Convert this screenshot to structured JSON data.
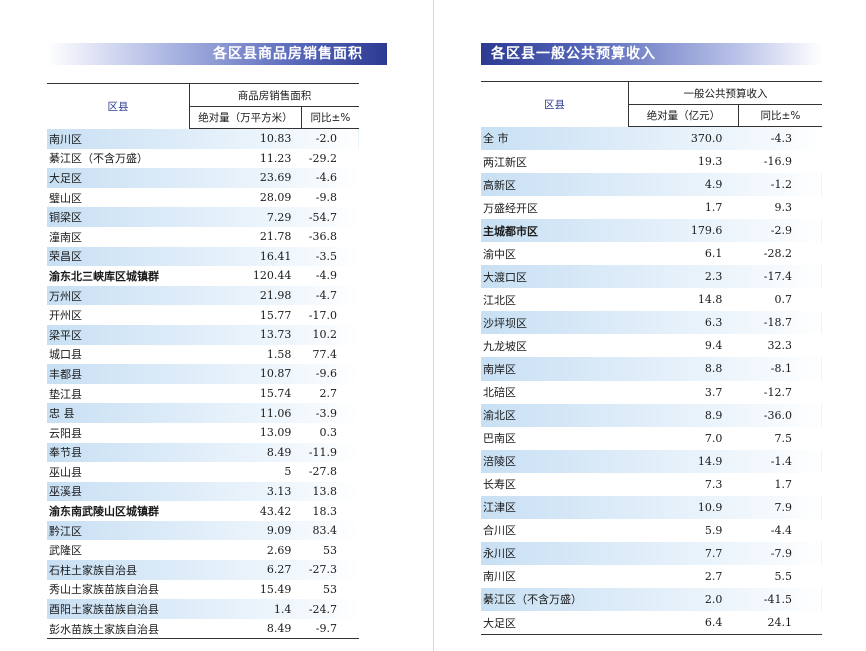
{
  "left": {
    "title": "各区县商品房销售面积",
    "header": {
      "region": "区县",
      "group": "商品房销售面积",
      "col1": "绝对量（万平方米）",
      "col2": "同比±%"
    },
    "rows": [
      {
        "name": "南川区",
        "v1": "10.83",
        "v2": "-2.0",
        "blue": true,
        "bold": false
      },
      {
        "name": "綦江区（不含万盛）",
        "v1": "11.23",
        "v2": "-29.2",
        "blue": false,
        "bold": false
      },
      {
        "name": "大足区",
        "v1": "23.69",
        "v2": "-4.6",
        "blue": true,
        "bold": false
      },
      {
        "name": "璧山区",
        "v1": "28.09",
        "v2": "-9.8",
        "blue": false,
        "bold": false
      },
      {
        "name": "铜梁区",
        "v1": "7.29",
        "v2": "-54.7",
        "blue": true,
        "bold": false
      },
      {
        "name": "潼南区",
        "v1": "21.78",
        "v2": "-36.8",
        "blue": false,
        "bold": false
      },
      {
        "name": "荣昌区",
        "v1": "16.41",
        "v2": "-3.5",
        "blue": true,
        "bold": false
      },
      {
        "name": "渝东北三峡库区城镇群",
        "v1": "120.44",
        "v2": "-4.9",
        "blue": false,
        "bold": true
      },
      {
        "name": "万州区",
        "v1": "21.98",
        "v2": "-4.7",
        "blue": true,
        "bold": false
      },
      {
        "name": "开州区",
        "v1": "15.77",
        "v2": "-17.0",
        "blue": false,
        "bold": false
      },
      {
        "name": "梁平区",
        "v1": "13.73",
        "v2": "10.2",
        "blue": true,
        "bold": false
      },
      {
        "name": "城口县",
        "v1": "1.58",
        "v2": "77.4",
        "blue": false,
        "bold": false
      },
      {
        "name": "丰都县",
        "v1": "10.87",
        "v2": "-9.6",
        "blue": true,
        "bold": false
      },
      {
        "name": "垫江县",
        "v1": "15.74",
        "v2": "2.7",
        "blue": false,
        "bold": false
      },
      {
        "name": "忠 县",
        "v1": "11.06",
        "v2": "-3.9",
        "blue": true,
        "bold": false
      },
      {
        "name": "云阳县",
        "v1": "13.09",
        "v2": "0.3",
        "blue": false,
        "bold": false
      },
      {
        "name": "奉节县",
        "v1": "8.49",
        "v2": "-11.9",
        "blue": true,
        "bold": false
      },
      {
        "name": "巫山县",
        "v1": "5",
        "v2": "-27.8",
        "blue": false,
        "bold": false
      },
      {
        "name": "巫溪县",
        "v1": "3.13",
        "v2": "13.8",
        "blue": true,
        "bold": false
      },
      {
        "name": "渝东南武陵山区城镇群",
        "v1": "43.42",
        "v2": "18.3",
        "blue": false,
        "bold": true
      },
      {
        "name": "黔江区",
        "v1": "9.09",
        "v2": "83.4",
        "blue": true,
        "bold": false
      },
      {
        "name": "武隆区",
        "v1": "2.69",
        "v2": "53",
        "blue": false,
        "bold": false
      },
      {
        "name": "石柱土家族自治县",
        "v1": "6.27",
        "v2": "-27.3",
        "blue": true,
        "bold": false
      },
      {
        "name": "秀山土家族苗族自治县",
        "v1": "15.49",
        "v2": "53",
        "blue": false,
        "bold": false
      },
      {
        "name": "酉阳土家族苗族自治县",
        "v1": "1.4",
        "v2": "-24.7",
        "blue": true,
        "bold": false
      },
      {
        "name": "彭水苗族土家族自治县",
        "v1": "8.49",
        "v2": "-9.7",
        "blue": false,
        "bold": false
      }
    ]
  },
  "right": {
    "title": "各区县一般公共预算收入",
    "header": {
      "region": "区县",
      "group": "一般公共预算收入",
      "col1": "绝对量（亿元）",
      "col2": "同比±%"
    },
    "rows": [
      {
        "name": "全 市",
        "v1": "370.0",
        "v2": "-4.3",
        "blue": true,
        "bold": false
      },
      {
        "name": "两江新区",
        "v1": "19.3",
        "v2": "-16.9",
        "blue": false,
        "bold": false
      },
      {
        "name": "高新区",
        "v1": "4.9",
        "v2": "-1.2",
        "blue": true,
        "bold": false
      },
      {
        "name": "万盛经开区",
        "v1": "1.7",
        "v2": "9.3",
        "blue": false,
        "bold": false
      },
      {
        "name": "主城都市区",
        "v1": "179.6",
        "v2": "-2.9",
        "blue": true,
        "bold": true
      },
      {
        "name": "渝中区",
        "v1": "6.1",
        "v2": "-28.2",
        "blue": false,
        "bold": false
      },
      {
        "name": "大渡口区",
        "v1": "2.3",
        "v2": "-17.4",
        "blue": true,
        "bold": false
      },
      {
        "name": "江北区",
        "v1": "14.8",
        "v2": "0.7",
        "blue": false,
        "bold": false
      },
      {
        "name": "沙坪坝区",
        "v1": "6.3",
        "v2": "-18.7",
        "blue": true,
        "bold": false
      },
      {
        "name": "九龙坡区",
        "v1": "9.4",
        "v2": "32.3",
        "blue": false,
        "bold": false
      },
      {
        "name": "南岸区",
        "v1": "8.8",
        "v2": "-8.1",
        "blue": true,
        "bold": false
      },
      {
        "name": "北碚区",
        "v1": "3.7",
        "v2": "-12.7",
        "blue": false,
        "bold": false
      },
      {
        "name": "渝北区",
        "v1": "8.9",
        "v2": "-36.0",
        "blue": true,
        "bold": false
      },
      {
        "name": "巴南区",
        "v1": "7.0",
        "v2": "7.5",
        "blue": false,
        "bold": false
      },
      {
        "name": "涪陵区",
        "v1": "14.9",
        "v2": "-1.4",
        "blue": true,
        "bold": false
      },
      {
        "name": "长寿区",
        "v1": "7.3",
        "v2": "1.7",
        "blue": false,
        "bold": false
      },
      {
        "name": "江津区",
        "v1": "10.9",
        "v2": "7.9",
        "blue": true,
        "bold": false
      },
      {
        "name": "合川区",
        "v1": "5.9",
        "v2": "-4.4",
        "blue": false,
        "bold": false
      },
      {
        "name": "永川区",
        "v1": "7.7",
        "v2": "-7.9",
        "blue": true,
        "bold": false
      },
      {
        "name": "南川区",
        "v1": "2.7",
        "v2": "5.5",
        "blue": false,
        "bold": false
      },
      {
        "name": "綦江区（不含万盛）",
        "v1": "2.0",
        "v2": "-41.5",
        "blue": true,
        "bold": false
      },
      {
        "name": "大足区",
        "v1": "6.4",
        "v2": "24.1",
        "blue": false,
        "bold": false
      }
    ]
  }
}
